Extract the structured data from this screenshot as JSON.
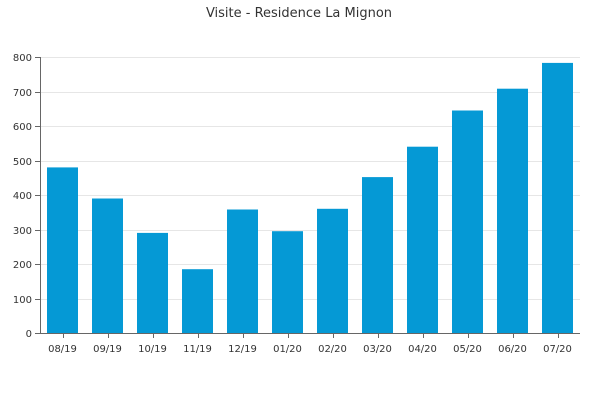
{
  "chart_data": {
    "type": "bar",
    "title": "Visite - Residence La Mignon",
    "xlabel": "",
    "ylabel": "",
    "categories": [
      "08/19",
      "09/19",
      "10/19",
      "11/19",
      "12/19",
      "01/20",
      "02/20",
      "03/20",
      "04/20",
      "05/20",
      "06/20",
      "07/20"
    ],
    "values": [
      480,
      390,
      290,
      185,
      358,
      295,
      360,
      452,
      540,
      645,
      708,
      783
    ],
    "ylim": [
      0,
      800
    ],
    "yticks": [
      0,
      100,
      200,
      300,
      400,
      500,
      600,
      700,
      800
    ],
    "grid": true,
    "legend": "none",
    "bar_color": "#0599d5"
  }
}
